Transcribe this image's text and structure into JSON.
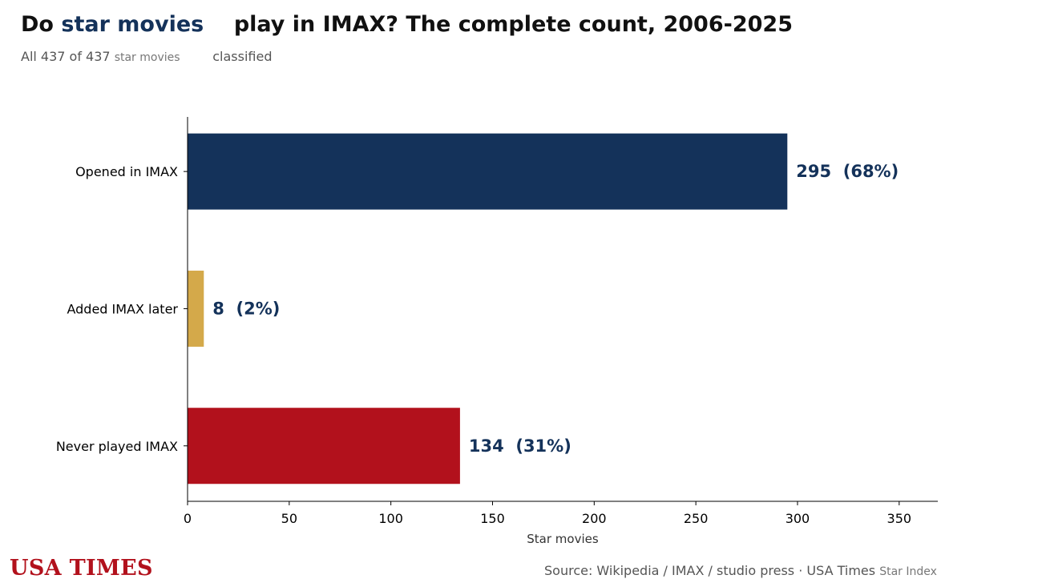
{
  "header": {
    "title_prefix": "Do",
    "title_highlight": "star movies",
    "title_suffix": "play in IMAX? The complete count, 2006-2025",
    "subtitle_prefix": "All 437 of 437",
    "subtitle_small": "star movies",
    "subtitle_suffix": "classified"
  },
  "footer": {
    "brand": "USA TIMES",
    "source": "Source: Wikipedia / IMAX / studio press · USA Times",
    "source_small": "Star Index"
  },
  "colors": {
    "navy": "#14325a",
    "gold": "#d4a94a",
    "red": "#b2111c"
  },
  "chart_data": {
    "type": "bar",
    "orientation": "horizontal",
    "categories": [
      "Opened in IMAX",
      "Added IMAX later",
      "Never played IMAX"
    ],
    "values": [
      295,
      8,
      134
    ],
    "data_labels": [
      "295  (68%)",
      "8  (2%)",
      "134  (31%)"
    ],
    "bar_colors": [
      "#14325a",
      "#d4a94a",
      "#b2111c"
    ],
    "xlabel": "Star movies",
    "ylabel": "",
    "xlim": [
      0,
      369
    ],
    "xticks": [
      0,
      50,
      100,
      150,
      200,
      250,
      300,
      350
    ],
    "grid": false
  }
}
